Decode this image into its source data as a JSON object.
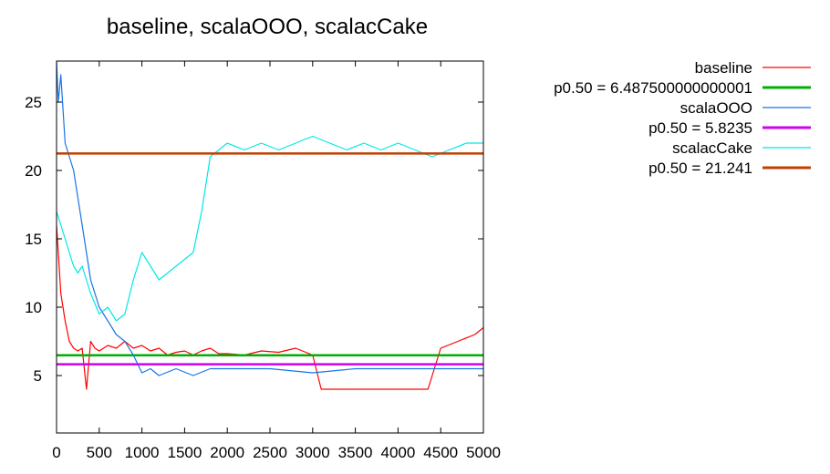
{
  "chart_data": {
    "type": "line",
    "title": "baseline, scalaOOO, scalacCake",
    "xlabel": "",
    "ylabel": "",
    "xlim": [
      0,
      5000
    ],
    "ylim": [
      0.8,
      28
    ],
    "x_ticks": [
      0,
      500,
      1000,
      1500,
      2000,
      2500,
      3000,
      3500,
      4000,
      4500,
      5000
    ],
    "y_ticks": [
      5,
      10,
      15,
      20,
      25
    ],
    "grid": false,
    "legend_position": "outside-right",
    "series": [
      {
        "name": "baseline",
        "color": "#ff0000",
        "x": [
          0,
          20,
          50,
          100,
          150,
          200,
          250,
          300,
          350,
          400,
          450,
          500,
          600,
          700,
          800,
          900,
          1000,
          1100,
          1200,
          1300,
          1400,
          1500,
          1600,
          1700,
          1800,
          1900,
          2000,
          2200,
          2400,
          2600,
          2800,
          3000,
          3100,
          3200,
          3400,
          3600,
          3800,
          4000,
          4200,
          4350,
          4500,
          4700,
          4900,
          5000
        ],
        "values": [
          16,
          14,
          11,
          9,
          7.5,
          7,
          6.8,
          7,
          4,
          7.5,
          7,
          6.8,
          7.2,
          7,
          7.5,
          7,
          7.2,
          6.8,
          7,
          6.5,
          6.7,
          6.8,
          6.5,
          6.8,
          7,
          6.6,
          6.6,
          6.5,
          6.8,
          6.7,
          7,
          6.5,
          4,
          4,
          4,
          4,
          4,
          4,
          4,
          4,
          7,
          7.5,
          8,
          8.5
        ]
      },
      {
        "name": "p0.50 = 6.487500000000001",
        "color": "#00b000",
        "x": [
          0,
          5000
        ],
        "values": [
          6.4875,
          6.4875
        ]
      },
      {
        "name": "scalaOOO",
        "color": "#1a73e8",
        "x": [
          0,
          20,
          50,
          100,
          200,
          300,
          400,
          500,
          600,
          700,
          800,
          900,
          1000,
          1100,
          1200,
          1400,
          1600,
          1800,
          2000,
          2500,
          3000,
          3500,
          4000,
          4500,
          5000
        ],
        "values": [
          28,
          25,
          27,
          22,
          20,
          16,
          12,
          10,
          9,
          8,
          7.5,
          6.5,
          5.2,
          5.5,
          5,
          5.5,
          5,
          5.5,
          5.5,
          5.5,
          5.2,
          5.5,
          5.5,
          5.5,
          5.5
        ]
      },
      {
        "name": "p0.50 = 5.8235",
        "color": "#d000f0",
        "x": [
          0,
          5000
        ],
        "values": [
          5.8235,
          5.8235
        ]
      },
      {
        "name": "scalacCake",
        "color": "#00e8e8",
        "x": [
          0,
          50,
          100,
          150,
          200,
          250,
          300,
          400,
          500,
          600,
          700,
          800,
          900,
          1000,
          1100,
          1200,
          1300,
          1400,
          1500,
          1600,
          1700,
          1800,
          2000,
          2200,
          2400,
          2600,
          2800,
          3000,
          3200,
          3400,
          3600,
          3800,
          4000,
          4200,
          4400,
          4600,
          4800,
          5000
        ],
        "values": [
          17,
          16,
          15,
          14,
          13,
          12.5,
          13,
          11,
          9.5,
          10,
          9,
          9.5,
          12,
          14,
          13,
          12,
          12.5,
          13,
          13.5,
          14,
          17,
          21,
          22,
          21.5,
          22,
          21.5,
          22,
          22.5,
          22,
          21.5,
          22,
          21.5,
          22,
          21.5,
          21,
          21.5,
          22,
          22
        ]
      },
      {
        "name": "p0.50 = 21.241",
        "color": "#c04000",
        "x": [
          0,
          5000
        ],
        "values": [
          21.241,
          21.241
        ]
      }
    ]
  }
}
